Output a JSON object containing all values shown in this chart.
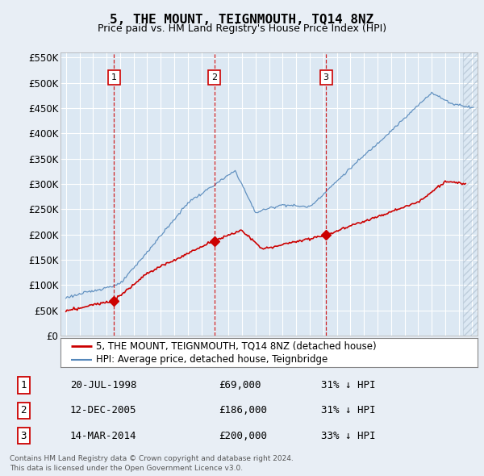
{
  "title": "5, THE MOUNT, TEIGNMOUTH, TQ14 8NZ",
  "subtitle": "Price paid vs. HM Land Registry's House Price Index (HPI)",
  "legend_line1": "5, THE MOUNT, TEIGNMOUTH, TQ14 8NZ (detached house)",
  "legend_line2": "HPI: Average price, detached house, Teignbridge",
  "footer1": "Contains HM Land Registry data © Crown copyright and database right 2024.",
  "footer2": "This data is licensed under the Open Government Licence v3.0.",
  "sales": [
    {
      "num": 1,
      "date": "20-JUL-1998",
      "price": "£69,000",
      "hpi": "31% ↓ HPI",
      "year": 1998.55
    },
    {
      "num": 2,
      "date": "12-DEC-2005",
      "price": "£186,000",
      "hpi": "31% ↓ HPI",
      "year": 2005.95
    },
    {
      "num": 3,
      "date": "14-MAR-2014",
      "price": "£200,000",
      "hpi": "33% ↓ HPI",
      "year": 2014.2
    }
  ],
  "sale_values": [
    69000,
    186000,
    200000
  ],
  "ylim": [
    0,
    560000
  ],
  "yticks": [
    0,
    50000,
    100000,
    150000,
    200000,
    250000,
    300000,
    350000,
    400000,
    450000,
    500000,
    550000
  ],
  "xlim_start": 1994.6,
  "xlim_end": 2025.4,
  "bg_color": "#e8eef5",
  "plot_bg": "#dce8f3",
  "red_color": "#cc0000",
  "blue_color": "#5588bb",
  "grid_color": "#ffffff"
}
